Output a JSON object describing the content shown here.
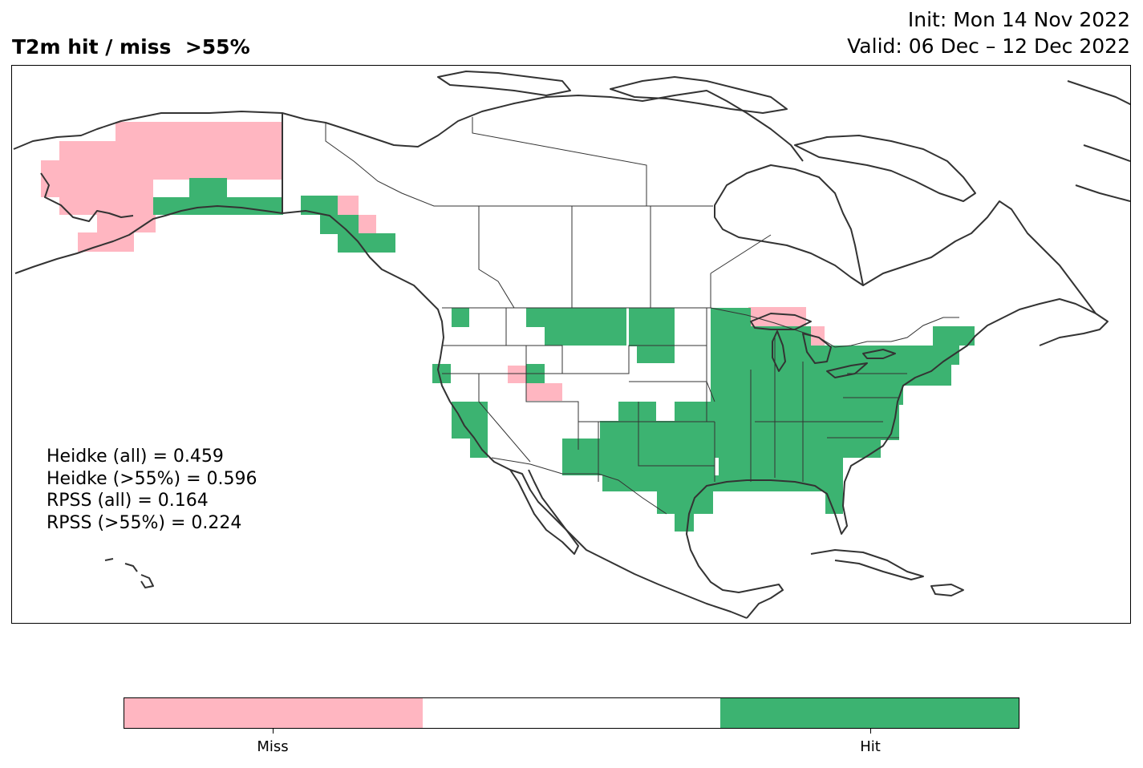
{
  "header": {
    "title": "T2m hit / miss  >55%",
    "init": "Init: Mon 14 Nov 2022",
    "valid": "Valid: 06 Dec – 12 Dec 2022"
  },
  "stats": [
    "Heidke (all) = 0.459",
    "Heidke (>55%) = 0.596",
    "RPSS (all) = 0.164",
    "RPSS (>55%) = 0.224"
  ],
  "colors": {
    "miss": "#ffb6c1",
    "neutral": "#ffffff",
    "hit": "#3cb371",
    "outline": "#333333"
  },
  "colorbar": {
    "labels": [
      "Miss",
      "Hit"
    ]
  },
  "map": {
    "region": "North America",
    "categories": [
      "miss",
      "neutral",
      "hit"
    ]
  }
}
